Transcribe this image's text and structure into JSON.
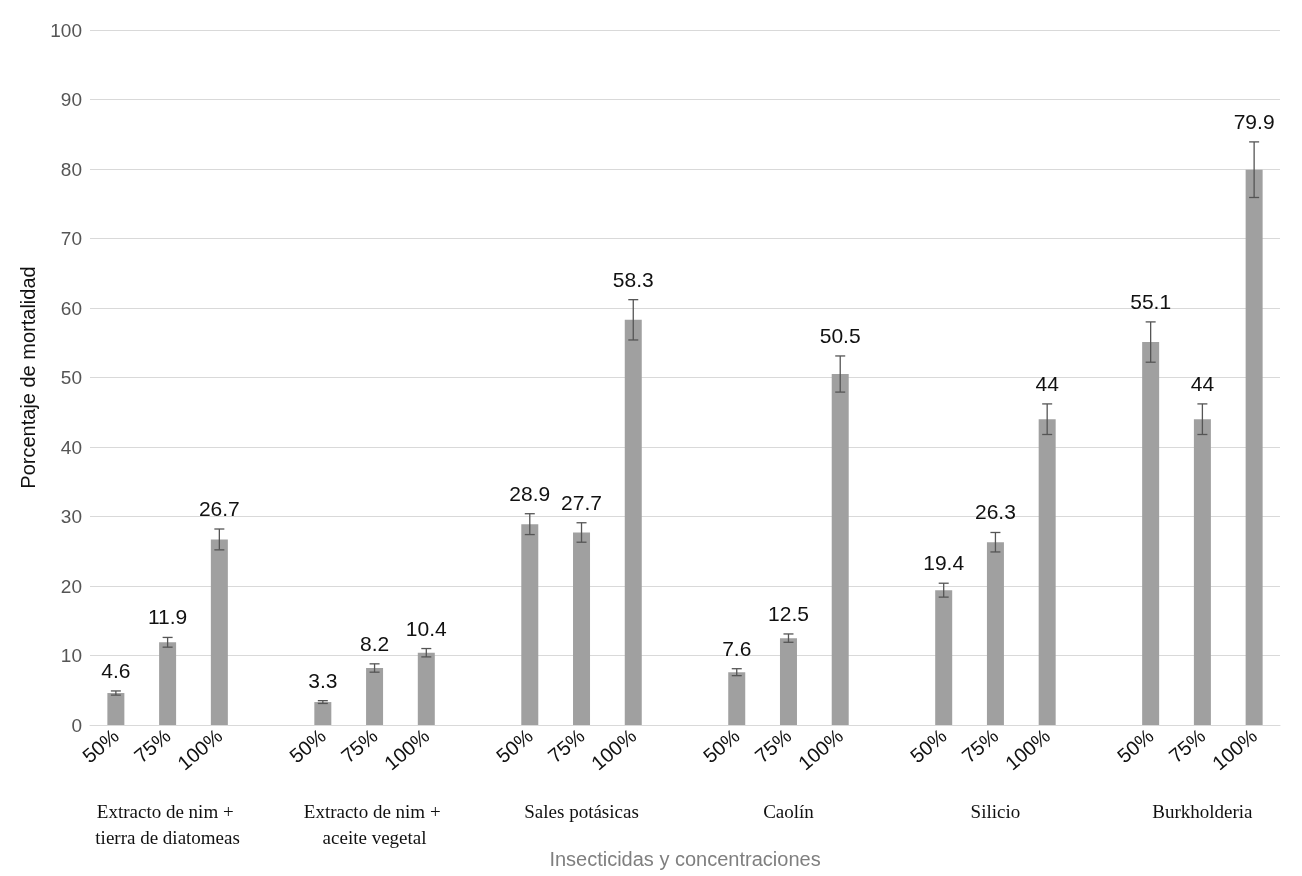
{
  "chart_data": {
    "type": "bar",
    "xlabel": "Insecticidas y concentraciones",
    "ylabel": "Porcentaje de mortalidad",
    "categories": [
      "50%",
      "75%",
      "100%",
      null,
      "50%",
      "75%",
      "100%",
      null,
      "50%",
      "75%",
      "100%",
      null,
      "50%",
      "75%",
      "100%",
      null,
      "50%",
      "75%",
      "100%",
      null,
      "50%",
      "75%",
      "100%"
    ],
    "values": [
      4.6,
      11.9,
      26.7,
      null,
      3.3,
      8.2,
      10.4,
      null,
      28.9,
      27.7,
      58.3,
      null,
      7.6,
      12.5,
      50.5,
      null,
      19.4,
      26.3,
      44,
      null,
      55.1,
      44,
      79.9
    ],
    "errors": [
      0.3,
      0.7,
      1.5,
      null,
      0.2,
      0.6,
      0.6,
      null,
      1.5,
      1.4,
      2.9,
      null,
      0.5,
      0.6,
      2.6,
      null,
      1.0,
      1.4,
      2.2,
      null,
      2.9,
      2.2,
      4.0
    ],
    "color": "#a0a0a0",
    "data_labels": true,
    "annotations": [
      "Extracto de nim + tierra de diatomeas",
      "Extracto de nim + aceite vegetal",
      "Sales potásicas",
      "Caolín",
      "Silicio",
      "Burkholderia"
    ],
    "ylim": [
      0,
      100
    ],
    "yticks": [
      0,
      10,
      20,
      30,
      40,
      50,
      60,
      70,
      80,
      90,
      100
    ],
    "grid": "y"
  }
}
